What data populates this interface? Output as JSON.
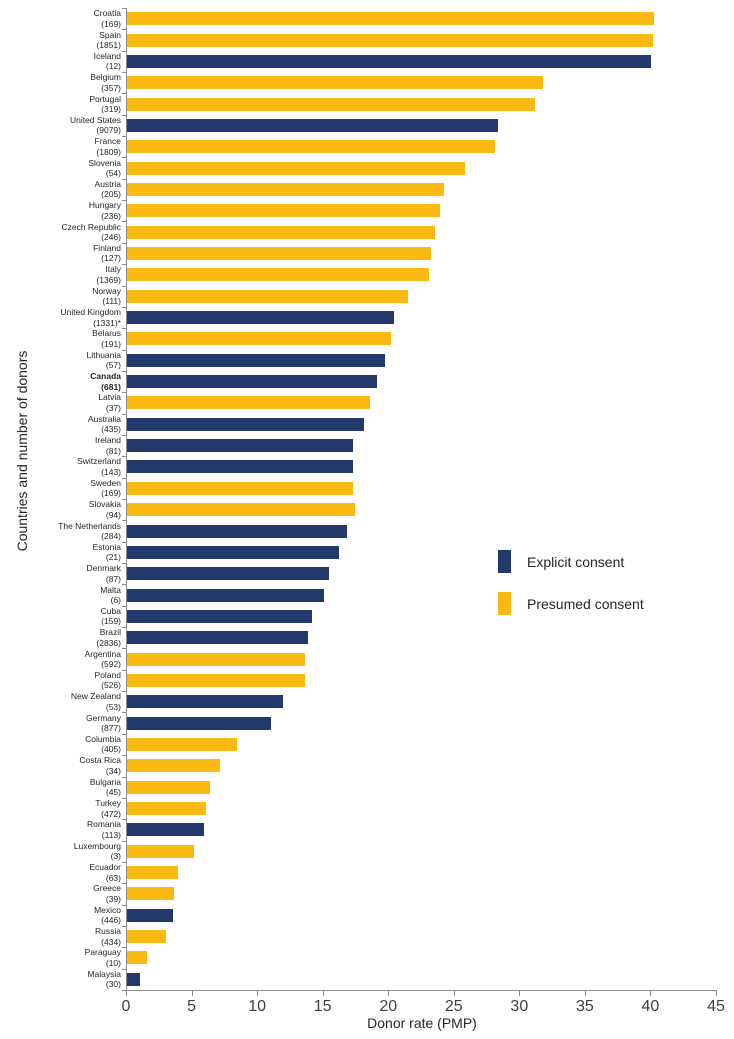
{
  "chart_data": {
    "type": "bar",
    "orientation": "horizontal",
    "title": "",
    "xlabel": "Donor rate (PMP)",
    "ylabel": "Countries and number of donors",
    "xlim": [
      0,
      45
    ],
    "xticks": [
      0,
      5,
      10,
      15,
      20,
      25,
      30,
      35,
      40,
      45
    ],
    "grid": false,
    "legend_position": "right-middle",
    "series_colors": {
      "explicit": "#24396B",
      "presumed": "#FDB913"
    },
    "rows": [
      {
        "country": "Croatia",
        "donors": "(169)",
        "value": 40.2,
        "consent": "presumed",
        "bold": false
      },
      {
        "country": "Spain",
        "donors": "(1851)",
        "value": 40.1,
        "consent": "presumed",
        "bold": false
      },
      {
        "country": "Iceland",
        "donors": "(12)",
        "value": 40.0,
        "consent": "explicit",
        "bold": false
      },
      {
        "country": "Belgium",
        "donors": "(357)",
        "value": 31.7,
        "consent": "presumed",
        "bold": false
      },
      {
        "country": "Portugal",
        "donors": "(319)",
        "value": 31.1,
        "consent": "presumed",
        "bold": false
      },
      {
        "country": "United States",
        "donors": "(9079)",
        "value": 28.3,
        "consent": "explicit",
        "bold": false
      },
      {
        "country": "France",
        "donors": "(1809)",
        "value": 28.1,
        "consent": "presumed",
        "bold": false
      },
      {
        "country": "Slovenia",
        "donors": "(54)",
        "value": 25.8,
        "consent": "presumed",
        "bold": false
      },
      {
        "country": "Austria",
        "donors": "(205)",
        "value": 24.2,
        "consent": "presumed",
        "bold": false
      },
      {
        "country": "Hungary",
        "donors": "(236)",
        "value": 23.9,
        "consent": "presumed",
        "bold": false
      },
      {
        "country": "Czech Republic",
        "donors": "(246)",
        "value": 23.5,
        "consent": "presumed",
        "bold": false
      },
      {
        "country": "Finland",
        "donors": "(127)",
        "value": 23.2,
        "consent": "presumed",
        "bold": false
      },
      {
        "country": "Italy",
        "donors": "(1369)",
        "value": 23.0,
        "consent": "presumed",
        "bold": false
      },
      {
        "country": "Norway",
        "donors": "(111)",
        "value": 21.4,
        "consent": "presumed",
        "bold": false
      },
      {
        "country": "United Kingdom",
        "donors": "(1331)*",
        "value": 20.4,
        "consent": "explicit",
        "bold": false
      },
      {
        "country": "Belarus",
        "donors": "(191)",
        "value": 20.1,
        "consent": "presumed",
        "bold": false
      },
      {
        "country": "Lithuania",
        "donors": "(57)",
        "value": 19.7,
        "consent": "explicit",
        "bold": false
      },
      {
        "country": "Canada",
        "donors": "(681)",
        "value": 19.1,
        "consent": "explicit",
        "bold": true
      },
      {
        "country": "Latvia",
        "donors": "(37)",
        "value": 18.5,
        "consent": "presumed",
        "bold": false
      },
      {
        "country": "Australia",
        "donors": "(435)",
        "value": 18.1,
        "consent": "explicit",
        "bold": false
      },
      {
        "country": "Ireland",
        "donors": "(81)",
        "value": 17.2,
        "consent": "explicit",
        "bold": false
      },
      {
        "country": "Switzerland",
        "donors": "(143)",
        "value": 17.2,
        "consent": "explicit",
        "bold": false
      },
      {
        "country": "Sweden",
        "donors": "(169)",
        "value": 17.2,
        "consent": "presumed",
        "bold": false
      },
      {
        "country": "Slovakia",
        "donors": "(94)",
        "value": 17.4,
        "consent": "presumed",
        "bold": false
      },
      {
        "country": "The Netherlands",
        "donors": "(284)",
        "value": 16.8,
        "consent": "explicit",
        "bold": false
      },
      {
        "country": "Estonia",
        "donors": "(21)",
        "value": 16.2,
        "consent": "explicit",
        "bold": false
      },
      {
        "country": "Denmark",
        "donors": "(87)",
        "value": 15.4,
        "consent": "explicit",
        "bold": false
      },
      {
        "country": "Malta",
        "donors": "(6)",
        "value": 15.0,
        "consent": "explicit",
        "bold": false
      },
      {
        "country": "Cuba",
        "donors": "(159)",
        "value": 14.1,
        "consent": "explicit",
        "bold": false
      },
      {
        "country": "Brazil",
        "donors": "(2836)",
        "value": 13.8,
        "consent": "explicit",
        "bold": false
      },
      {
        "country": "Argentina",
        "donors": "(592)",
        "value": 13.6,
        "consent": "presumed",
        "bold": false
      },
      {
        "country": "Poland",
        "donors": "(526)",
        "value": 13.6,
        "consent": "presumed",
        "bold": false
      },
      {
        "country": "New Zealand",
        "donors": "(53)",
        "value": 11.9,
        "consent": "explicit",
        "bold": false
      },
      {
        "country": "Germany",
        "donors": "(877)",
        "value": 11.0,
        "consent": "explicit",
        "bold": false
      },
      {
        "country": "Columbia",
        "donors": "(405)",
        "value": 8.4,
        "consent": "presumed",
        "bold": false
      },
      {
        "country": "Costa Rica",
        "donors": "(34)",
        "value": 7.1,
        "consent": "presumed",
        "bold": false
      },
      {
        "country": "Bulgaria",
        "donors": "(45)",
        "value": 6.3,
        "consent": "presumed",
        "bold": false
      },
      {
        "country": "Turkey",
        "donors": "(472)",
        "value": 6.0,
        "consent": "presumed",
        "bold": false
      },
      {
        "country": "Romania",
        "donors": "(113)",
        "value": 5.9,
        "consent": "explicit",
        "bold": false
      },
      {
        "country": "Luxembourg",
        "donors": "(3)",
        "value": 5.1,
        "consent": "presumed",
        "bold": false
      },
      {
        "country": "Ecuador",
        "donors": "(63)",
        "value": 3.9,
        "consent": "presumed",
        "bold": false
      },
      {
        "country": "Greece",
        "donors": "(39)",
        "value": 3.6,
        "consent": "presumed",
        "bold": false
      },
      {
        "country": "Mexico",
        "donors": "(446)",
        "value": 3.5,
        "consent": "explicit",
        "bold": false
      },
      {
        "country": "Russia",
        "donors": "(434)",
        "value": 3.0,
        "consent": "presumed",
        "bold": false
      },
      {
        "country": "Paraguay",
        "donors": "(10)",
        "value": 1.5,
        "consent": "presumed",
        "bold": false
      },
      {
        "country": "Malaysia",
        "donors": "(30)",
        "value": 1.0,
        "consent": "explicit",
        "bold": false
      }
    ]
  },
  "legend": [
    {
      "label": "Explicit consent",
      "consent": "explicit",
      "color": "#24396B"
    },
    {
      "label": "Presumed consent",
      "consent": "presumed",
      "color": "#FDB913"
    }
  ],
  "colors": {
    "explicit_bar": "#24396B",
    "presumed_bar": "#FDB913",
    "axis_line": "#8c8c8c",
    "tick_text": "#3f3f3f",
    "label_text": "#262626"
  }
}
